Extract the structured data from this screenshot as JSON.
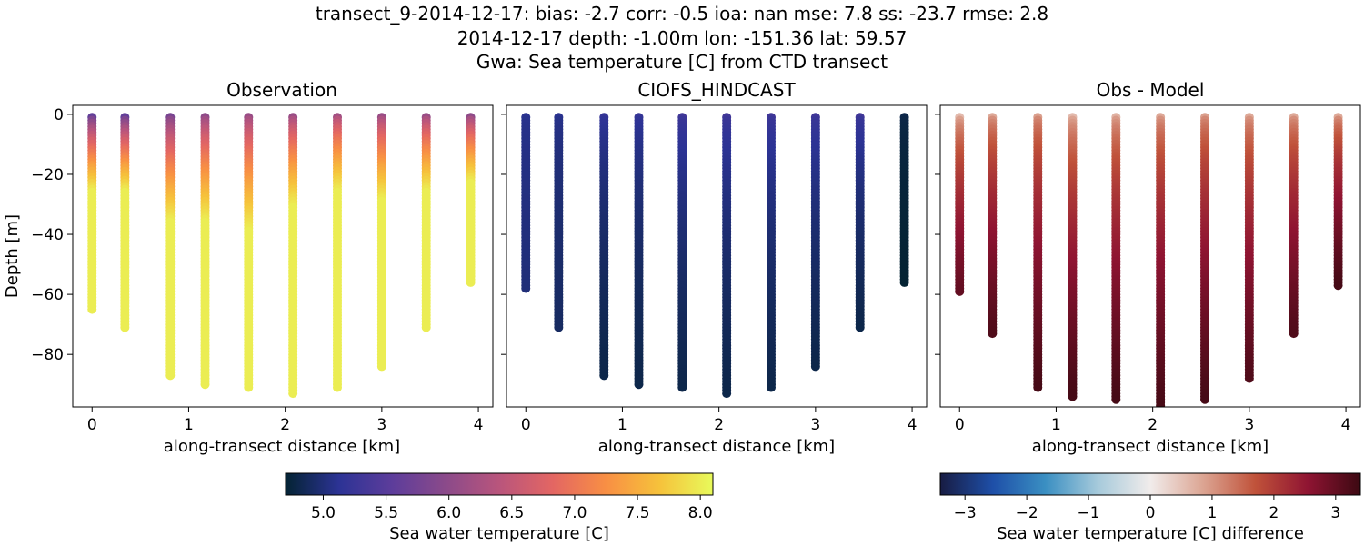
{
  "title_lines": [
    "transect_9-2014-12-17: bias: -2.7  corr: -0.5  ioa: nan  mse: 7.8  ss: -23.7  rmse: 2.8",
    "2014-12-17 depth: -1.00m lon: -151.36 lat: 59.57",
    "Gwa: Sea temperature [C] from CTD transect"
  ],
  "chart_data": [
    {
      "type": "scatter",
      "title": "Observation",
      "xlabel": "along-transect distance [km]",
      "ylabel": "Depth [m]",
      "xlim": [
        -0.2,
        4.15
      ],
      "ylim": [
        -97.5,
        3.0
      ],
      "xticks": [
        0,
        1,
        2,
        3,
        4
      ],
      "yticks": [
        0,
        -20,
        -40,
        -60,
        -80
      ],
      "ytick_labels": [
        "0",
        "−20",
        "−40",
        "−60",
        "−80"
      ],
      "colormap": "thermal",
      "profiles": [
        {
          "x": 0.0,
          "max_depth": 65,
          "surface_value": 5.6,
          "deep_value": 8.0,
          "mix_depth": 25
        },
        {
          "x": 0.34,
          "max_depth": 71,
          "surface_value": 5.6,
          "deep_value": 8.0,
          "mix_depth": 25
        },
        {
          "x": 0.81,
          "max_depth": 87,
          "surface_value": 5.8,
          "deep_value": 8.0,
          "mix_depth": 35
        },
        {
          "x": 1.17,
          "max_depth": 90,
          "surface_value": 6.0,
          "deep_value": 8.0,
          "mix_depth": 35
        },
        {
          "x": 1.62,
          "max_depth": 91,
          "surface_value": 6.1,
          "deep_value": 8.0,
          "mix_depth": 38
        },
        {
          "x": 2.08,
          "max_depth": 93,
          "surface_value": 6.1,
          "deep_value": 8.0,
          "mix_depth": 30
        },
        {
          "x": 2.54,
          "max_depth": 91,
          "surface_value": 6.2,
          "deep_value": 8.0,
          "mix_depth": 25
        },
        {
          "x": 3.0,
          "max_depth": 84,
          "surface_value": 6.1,
          "deep_value": 8.0,
          "mix_depth": 28
        },
        {
          "x": 3.46,
          "max_depth": 71,
          "surface_value": 6.1,
          "deep_value": 8.0,
          "mix_depth": 25
        },
        {
          "x": 3.92,
          "max_depth": 56,
          "surface_value": 6.0,
          "deep_value": 8.0,
          "mix_depth": 22
        }
      ]
    },
    {
      "type": "scatter",
      "title": "CIOFS_HINDCAST",
      "xlabel": "along-transect distance [km]",
      "xlim": [
        -0.2,
        4.15
      ],
      "ylim": [
        -97.5,
        3.0
      ],
      "xticks": [
        0,
        1,
        2,
        3,
        4
      ],
      "colormap": "thermal",
      "profiles": [
        {
          "x": 0.0,
          "max_depth": 58,
          "surface_value": 5.1,
          "deep_value": 5.0
        },
        {
          "x": 0.34,
          "max_depth": 71,
          "surface_value": 5.1,
          "deep_value": 4.9
        },
        {
          "x": 0.81,
          "max_depth": 87,
          "surface_value": 5.2,
          "deep_value": 4.8
        },
        {
          "x": 1.17,
          "max_depth": 90,
          "surface_value": 5.2,
          "deep_value": 4.8
        },
        {
          "x": 1.62,
          "max_depth": 91,
          "surface_value": 5.3,
          "deep_value": 4.8
        },
        {
          "x": 2.08,
          "max_depth": 93,
          "surface_value": 5.3,
          "deep_value": 4.8
        },
        {
          "x": 2.54,
          "max_depth": 91,
          "surface_value": 5.3,
          "deep_value": 4.8
        },
        {
          "x": 3.0,
          "max_depth": 84,
          "surface_value": 5.3,
          "deep_value": 4.8
        },
        {
          "x": 3.46,
          "max_depth": 71,
          "surface_value": 5.3,
          "deep_value": 4.8
        },
        {
          "x": 3.92,
          "max_depth": 56,
          "surface_value": 4.8,
          "deep_value": 4.7
        }
      ]
    },
    {
      "type": "scatter",
      "title": "Obs - Model",
      "xlabel": "along-transect distance [km]",
      "xlim": [
        -0.2,
        4.15
      ],
      "ylim": [
        -97.5,
        3.0
      ],
      "xticks": [
        0,
        1,
        2,
        3,
        4
      ],
      "colormap": "balance",
      "profiles": [
        {
          "x": 0.0,
          "max_depth": 59,
          "surface_value": 0.6,
          "deep_value": 3.0
        },
        {
          "x": 0.34,
          "max_depth": 73,
          "surface_value": 0.8,
          "deep_value": 3.2
        },
        {
          "x": 0.81,
          "max_depth": 91,
          "surface_value": 0.9,
          "deep_value": 3.3
        },
        {
          "x": 1.17,
          "max_depth": 94,
          "surface_value": 0.6,
          "deep_value": 3.3
        },
        {
          "x": 1.62,
          "max_depth": 95,
          "surface_value": 0.7,
          "deep_value": 3.3
        },
        {
          "x": 2.08,
          "max_depth": 98,
          "surface_value": 0.8,
          "deep_value": 3.3
        },
        {
          "x": 2.54,
          "max_depth": 95,
          "surface_value": 0.9,
          "deep_value": 3.3
        },
        {
          "x": 3.0,
          "max_depth": 88,
          "surface_value": 0.8,
          "deep_value": 3.2
        },
        {
          "x": 3.46,
          "max_depth": 73,
          "surface_value": 0.8,
          "deep_value": 3.2
        },
        {
          "x": 3.92,
          "max_depth": 57,
          "surface_value": 0.8,
          "deep_value": 3.3
        }
      ]
    }
  ],
  "colorbars": [
    {
      "label": "Sea water temperature [C]",
      "range": [
        4.7,
        8.1
      ],
      "ticks": [
        5.0,
        5.5,
        6.0,
        6.5,
        7.0,
        7.5,
        8.0
      ],
      "tick_labels": [
        "5.0",
        "5.5",
        "6.0",
        "6.5",
        "7.0",
        "7.5",
        "8.0"
      ],
      "colormap": "thermal"
    },
    {
      "label": "Sea water temperature [C] difference",
      "range": [
        -3.4,
        3.4
      ],
      "ticks": [
        -3,
        -2,
        -1,
        0,
        1,
        2,
        3
      ],
      "tick_labels": [
        "−3",
        "−2",
        "−1",
        "0",
        "1",
        "2",
        "3"
      ],
      "colormap": "balance"
    }
  ],
  "colormaps": {
    "thermal": [
      "#042333",
      "#2c3395",
      "#5d3d9b",
      "#8b4a8a",
      "#b9557c",
      "#e36663",
      "#f88f44",
      "#f6c23b",
      "#e8fa5b"
    ],
    "balance": [
      "#181c43",
      "#1e4fa8",
      "#3a8fc2",
      "#a6cadb",
      "#f1eceb",
      "#dca593",
      "#c0523a",
      "#8f1432",
      "#3c0912"
    ]
  }
}
